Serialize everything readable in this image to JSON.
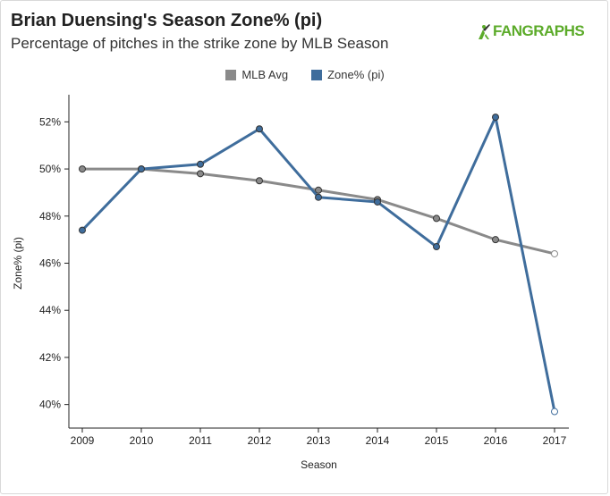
{
  "header": {
    "title": "Brian Duensing's Season Zone% (pi)",
    "subtitle": "Percentage of pitches in the strike zone by MLB Season",
    "logo_text": "FANGRAPHS",
    "logo_icon": "fangraphs-batter-icon"
  },
  "chart_data": {
    "type": "line",
    "title": "Brian Duensing's Season Zone% (pi)",
    "subtitle": "Percentage of pitches in the strike zone by MLB Season",
    "xlabel": "Season",
    "ylabel": "Zone% (pi)",
    "x": [
      2009,
      2010,
      2011,
      2012,
      2013,
      2014,
      2015,
      2016,
      2017
    ],
    "x_tick_labels": [
      "2009",
      "2010",
      "2011",
      "2012",
      "2013",
      "2014",
      "2015",
      "2016",
      "2017"
    ],
    "ylim": [
      39,
      53
    ],
    "y_ticks": [
      40,
      42,
      44,
      46,
      48,
      50,
      52
    ],
    "y_tick_labels": [
      "40%",
      "42%",
      "44%",
      "46%",
      "48%",
      "50%",
      "52%"
    ],
    "legend_position": "top-center",
    "grid": false,
    "series": [
      {
        "name": "MLB Avg",
        "color": "#8a8a8a",
        "values": [
          50.0,
          50.0,
          49.8,
          49.5,
          49.1,
          48.7,
          47.9,
          47.0,
          46.4
        ]
      },
      {
        "name": "Zone% (pi)",
        "color": "#3f6d9c",
        "values": [
          47.4,
          50.0,
          50.2,
          51.7,
          48.8,
          48.6,
          46.7,
          52.2,
          39.7
        ]
      }
    ],
    "last_point_hollow": true
  }
}
